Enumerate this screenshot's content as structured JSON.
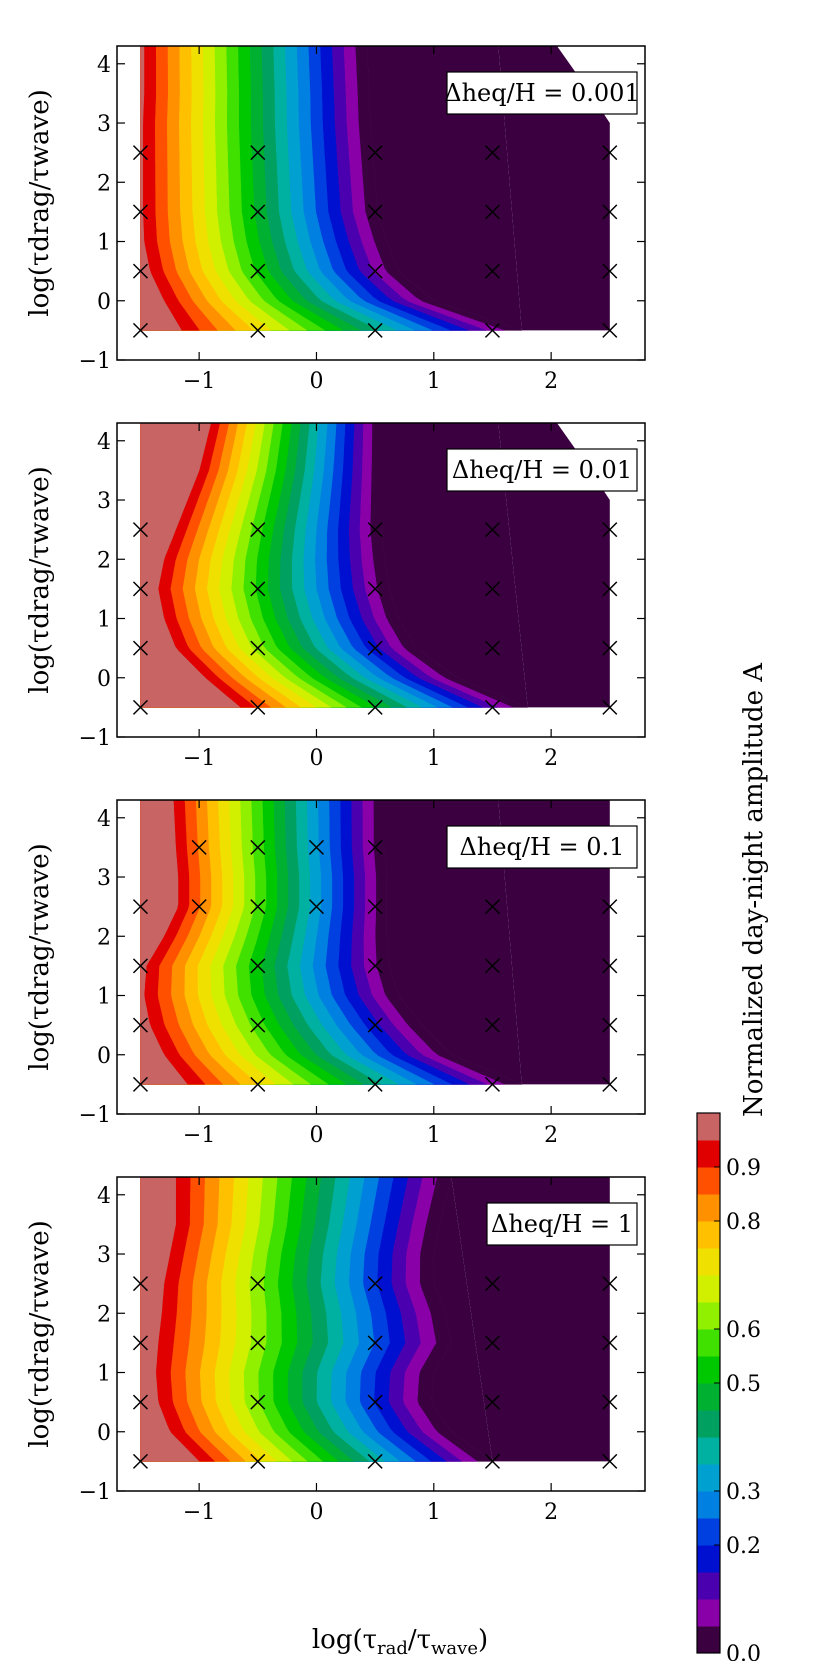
{
  "chart_data": {
    "type": "heatmap",
    "description_labels": {
      "xlabel": "log(τrad/τwave)",
      "ylabel": "log(τdrag/τwave)",
      "colorbar_label": "Normalized day-night amplitude A"
    },
    "x_range": [
      -1.7,
      2.8
    ],
    "y_range": [
      -1,
      4.3
    ],
    "x_ticks": [
      -1,
      0,
      1,
      2
    ],
    "x_tick_labels": [
      "−1",
      "0",
      "1",
      "2"
    ],
    "y_ticks": [
      -1,
      0,
      1,
      2,
      3,
      4
    ],
    "y_tick_labels": [
      "−1",
      "0",
      "1",
      "2",
      "3",
      "4"
    ],
    "colorbar": {
      "levels": [
        0.0,
        0.05,
        0.1,
        0.15,
        0.2,
        0.25,
        0.3,
        0.35,
        0.4,
        0.45,
        0.5,
        0.55,
        0.6,
        0.65,
        0.7,
        0.75,
        0.8,
        0.85,
        0.9,
        0.95
      ],
      "colors": [
        "#3a0040",
        "#8a00a8",
        "#4b00b0",
        "#0010d0",
        "#0040e0",
        "#0080e0",
        "#00a0d0",
        "#00b0a0",
        "#00a060",
        "#00b030",
        "#00c800",
        "#40e000",
        "#90f000",
        "#d0f000",
        "#f0e000",
        "#ffc000",
        "#ff9000",
        "#ff5000",
        "#e00000",
        "#c86464"
      ],
      "tick_values": [
        0.0,
        0.2,
        0.3,
        0.5,
        0.6,
        0.8,
        0.9
      ],
      "tick_labels": [
        "0.0",
        "0.2",
        "0.3",
        "0.5",
        "0.6",
        "0.8",
        "0.9"
      ]
    },
    "panels": [
      {
        "annotation": "Δheq/H = 0.001",
        "samples": [
          [
            -1.5,
            -0.5
          ],
          [
            -1.5,
            0.5
          ],
          [
            -1.5,
            1.5
          ],
          [
            -1.5,
            2.5
          ],
          [
            -0.5,
            -0.5
          ],
          [
            -0.5,
            0.5
          ],
          [
            -0.5,
            1.5
          ],
          [
            -0.5,
            2.5
          ],
          [
            0.5,
            -0.5
          ],
          [
            0.5,
            0.5
          ],
          [
            0.5,
            1.5
          ],
          [
            0.5,
            2.5
          ],
          [
            1.5,
            -0.5
          ],
          [
            1.5,
            0.5
          ],
          [
            1.5,
            1.5
          ],
          [
            1.5,
            2.5
          ],
          [
            2.5,
            -0.5
          ],
          [
            2.5,
            0.5
          ],
          [
            2.5,
            1.5
          ],
          [
            2.5,
            2.5
          ]
        ],
        "edges": {
          "knots": [
            -0.5,
            0.0,
            0.5,
            1.0,
            1.5,
            2.0,
            2.5,
            3.0,
            3.5,
            4.3
          ],
          "left": [
            -1.15,
            -1.3,
            -1.42,
            -1.47,
            -1.48,
            -1.48,
            -1.48,
            -1.48,
            -1.47,
            -1.47
          ],
          "right": [
            1.75,
            1.0,
            0.7,
            0.6,
            0.52,
            0.5,
            0.48,
            0.46,
            0.45,
            0.43
          ]
        },
        "extra_dark": [
          [
            1.75,
            -0.5
          ],
          [
            2.5,
            -0.5
          ],
          [
            2.5,
            3.0
          ],
          [
            2.3,
            3.6
          ],
          [
            2.05,
            4.3
          ],
          [
            1.55,
            4.3
          ]
        ]
      },
      {
        "annotation": "Δheq/H = 0.01",
        "samples": [
          [
            -1.5,
            -0.5
          ],
          [
            -1.5,
            0.5
          ],
          [
            -1.5,
            1.5
          ],
          [
            -1.5,
            2.5
          ],
          [
            -0.5,
            -0.5
          ],
          [
            -0.5,
            0.5
          ],
          [
            -0.5,
            1.5
          ],
          [
            -0.5,
            2.5
          ],
          [
            0.5,
            -0.5
          ],
          [
            0.5,
            0.5
          ],
          [
            0.5,
            1.5
          ],
          [
            0.5,
            2.5
          ],
          [
            1.5,
            -0.5
          ],
          [
            1.5,
            0.5
          ],
          [
            1.5,
            1.5
          ],
          [
            1.5,
            2.5
          ],
          [
            2.5,
            -0.5
          ],
          [
            2.5,
            0.5
          ],
          [
            2.5,
            1.5
          ],
          [
            2.5,
            2.5
          ]
        ],
        "edges": {
          "knots": [
            -0.5,
            0.0,
            0.5,
            1.0,
            1.5,
            2.0,
            2.5,
            3.0,
            3.5,
            4.3
          ],
          "left": [
            -0.65,
            -0.95,
            -1.2,
            -1.3,
            -1.35,
            -1.3,
            -1.2,
            -1.1,
            -1.0,
            -0.9
          ],
          "right": [
            1.8,
            1.2,
            0.85,
            0.7,
            0.62,
            0.58,
            0.55,
            0.55,
            0.55,
            0.55
          ]
        },
        "extra_dark": [
          [
            1.8,
            -0.5
          ],
          [
            2.5,
            -0.5
          ],
          [
            2.5,
            3.0
          ],
          [
            2.3,
            3.6
          ],
          [
            2.05,
            4.3
          ],
          [
            1.55,
            4.3
          ]
        ]
      },
      {
        "annotation": "Δheq/H = 0.1",
        "samples": [
          [
            -1.5,
            -0.5
          ],
          [
            -1.5,
            0.5
          ],
          [
            -1.5,
            1.5
          ],
          [
            -1.5,
            2.5
          ],
          [
            -1,
            2.5
          ],
          [
            -1,
            3.5
          ],
          [
            -0.5,
            -0.5
          ],
          [
            -0.5,
            0.5
          ],
          [
            -0.5,
            1.5
          ],
          [
            -0.5,
            2.5
          ],
          [
            -0.5,
            3.5
          ],
          [
            0,
            2.5
          ],
          [
            0,
            3.5
          ],
          [
            0.5,
            -0.5
          ],
          [
            0.5,
            0.5
          ],
          [
            0.5,
            1.5
          ],
          [
            0.5,
            2.5
          ],
          [
            0.5,
            3.5
          ],
          [
            1.5,
            -0.5
          ],
          [
            1.5,
            0.5
          ],
          [
            1.5,
            1.5
          ],
          [
            1.5,
            2.5
          ],
          [
            2.5,
            -0.5
          ],
          [
            2.5,
            0.5
          ],
          [
            2.5,
            1.5
          ],
          [
            2.5,
            2.5
          ]
        ],
        "edges": {
          "knots": [
            -0.5,
            0.0,
            0.5,
            1.0,
            1.5,
            2.0,
            2.5,
            3.0,
            3.5,
            4.3
          ],
          "left": [
            -1.1,
            -1.3,
            -1.42,
            -1.47,
            -1.45,
            -1.3,
            -1.18,
            -1.18,
            -1.2,
            -1.22
          ],
          "right": [
            1.75,
            1.15,
            0.9,
            0.7,
            0.62,
            0.6,
            0.6,
            0.6,
            0.58,
            0.58
          ]
        },
        "extra_dark": [
          [
            1.75,
            -0.5
          ],
          [
            2.5,
            -0.5
          ],
          [
            2.5,
            4.3
          ],
          [
            1.55,
            4.3
          ]
        ]
      },
      {
        "annotation": "Δheq/H = 1",
        "samples": [
          [
            -1.5,
            -0.5
          ],
          [
            -1.5,
            0.5
          ],
          [
            -1.5,
            1.5
          ],
          [
            -1.5,
            2.5
          ],
          [
            -0.5,
            -0.5
          ],
          [
            -0.5,
            0.5
          ],
          [
            -0.5,
            1.5
          ],
          [
            -0.5,
            2.5
          ],
          [
            0.5,
            -0.5
          ],
          [
            0.5,
            0.5
          ],
          [
            0.5,
            1.5
          ],
          [
            0.5,
            2.5
          ],
          [
            1.5,
            -0.5
          ],
          [
            1.5,
            0.5
          ],
          [
            1.5,
            1.5
          ],
          [
            1.5,
            2.5
          ],
          [
            2.5,
            -0.5
          ],
          [
            2.5,
            0.5
          ],
          [
            2.5,
            1.5
          ],
          [
            2.5,
            2.5
          ]
        ],
        "edges": {
          "knots": [
            -0.5,
            0.0,
            0.5,
            1.0,
            1.5,
            2.0,
            2.5,
            3.0,
            3.5,
            4.3
          ],
          "left": [
            -1.0,
            -1.25,
            -1.35,
            -1.37,
            -1.35,
            -1.32,
            -1.3,
            -1.25,
            -1.2,
            -1.2
          ],
          "right": [
            1.5,
            1.15,
            0.98,
            1.0,
            1.15,
            1.1,
            1.0,
            1.0,
            1.05,
            1.15
          ]
        },
        "extra_dark": [
          [
            1.5,
            -0.5
          ],
          [
            2.5,
            -0.5
          ],
          [
            2.5,
            4.3
          ],
          [
            1.15,
            4.3
          ]
        ]
      }
    ]
  }
}
